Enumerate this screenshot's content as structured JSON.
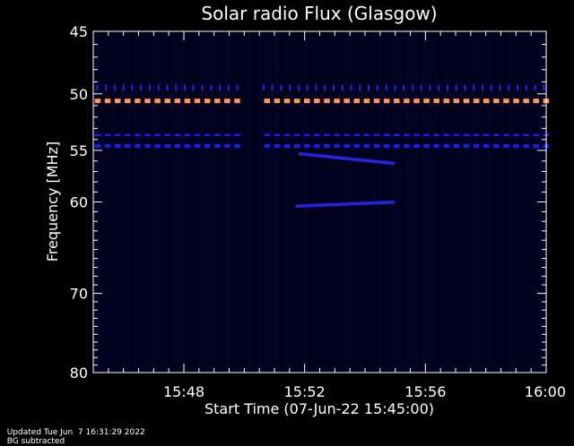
{
  "chart_data": {
    "type": "heatmap",
    "title": "Solar radio Flux (Glasgow)",
    "xlabel": "Start Time (07-Jun-22 15:45:00)",
    "ylabel": "Frequency [MHz]",
    "x_range_minutes": [
      0,
      15
    ],
    "x_ticks": [
      {
        "minute": 3,
        "label": "15:48"
      },
      {
        "minute": 7,
        "label": "15:52"
      },
      {
        "minute": 11,
        "label": "15:56"
      },
      {
        "minute": 15,
        "label": "16:00"
      }
    ],
    "y_scale": "log",
    "ylim": [
      45,
      80
    ],
    "y_ticks": [
      {
        "value": 45,
        "label": "45"
      },
      {
        "value": 50,
        "label": "50"
      },
      {
        "value": 55,
        "label": "55"
      },
      {
        "value": 60,
        "label": "60"
      },
      {
        "value": 70,
        "label": "70"
      },
      {
        "value": 80,
        "label": "80"
      }
    ],
    "y_minor_ticks": [
      46,
      47,
      48,
      49,
      51,
      52,
      53,
      54,
      56,
      57,
      58,
      59,
      61,
      62,
      63,
      64,
      65,
      66,
      67,
      68,
      69,
      71,
      72,
      73,
      74,
      75,
      76,
      77,
      78,
      79
    ],
    "x_minor_step_minutes": 0.5,
    "gap_minutes": [
      4.9,
      5.5
    ],
    "bands": [
      {
        "freq": 50.6,
        "color": "#ff9955",
        "kind": "dashed"
      },
      {
        "freq": 49.6,
        "color": "#1a22ff",
        "kind": "ticks"
      },
      {
        "freq": 53.6,
        "color": "#1a1aff",
        "kind": "dashed"
      },
      {
        "freq": 54.6,
        "color": "#1a1aff",
        "kind": "dashed-bold"
      }
    ],
    "features": [
      {
        "freq_start": 55.3,
        "freq_end": 56.2,
        "minute_start": 6.8,
        "minute_end": 9.9,
        "color": "#2a2aff"
      },
      {
        "freq_start": 60.4,
        "freq_end": 60.0,
        "minute_start": 6.7,
        "minute_end": 9.9,
        "color": "#2a2aff"
      }
    ],
    "colors": {
      "background": "#000000",
      "plot_bg": "#00001a",
      "axis": "#ffffff"
    }
  },
  "footer": {
    "updated": "Updated Tue Jun  7 16:31:29 2022",
    "bg_note": "BG subtracted"
  }
}
